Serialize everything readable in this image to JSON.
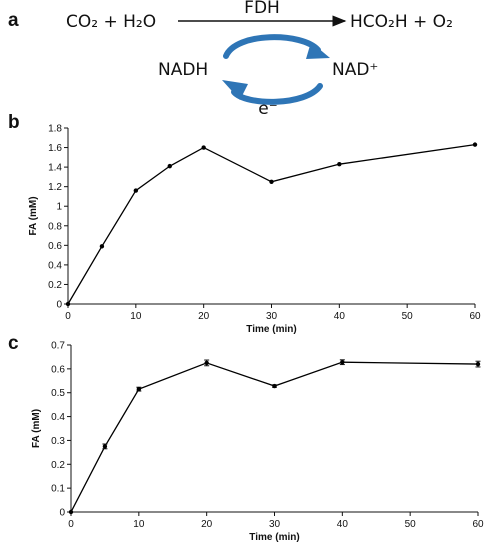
{
  "panels": {
    "a": "a",
    "b": "b",
    "c": "c"
  },
  "scheme": {
    "left": "CO₂ + H₂O",
    "enzyme": "FDH",
    "right": "HCO₂H + O₂",
    "cofactor_left": "NADH",
    "cofactor_right": "NAD⁺",
    "electron": "e⁻",
    "arrow_color": "#2E75B6"
  },
  "chart_data": [
    {
      "type": "line",
      "panel": "b",
      "x": [
        0,
        5,
        10,
        15,
        20,
        30,
        40,
        60
      ],
      "values": [
        0,
        0.59,
        1.16,
        1.41,
        1.6,
        1.25,
        1.43,
        1.63
      ],
      "xlabel": "Time (min)",
      "ylabel": "FA (mM)",
      "xlim": [
        0,
        60
      ],
      "ylim": [
        0,
        1.8
      ],
      "xticks": [
        0,
        10,
        20,
        30,
        40,
        50,
        60
      ],
      "yticks": [
        0,
        0.2,
        0.4,
        0.6,
        0.8,
        1,
        1.2,
        1.4,
        1.6,
        1.8
      ],
      "grid": false,
      "color": "#000000"
    },
    {
      "type": "line",
      "panel": "c",
      "x": [
        0,
        5,
        10,
        20,
        30,
        40,
        60
      ],
      "values": [
        0,
        0.275,
        0.515,
        0.625,
        0.528,
        0.628,
        0.62
      ],
      "errors": [
        0,
        0.01,
        0.008,
        0.012,
        0.005,
        0.01,
        0.012
      ],
      "xlabel": "Time (min)",
      "ylabel": "FA (mM)",
      "xlim": [
        0,
        60
      ],
      "ylim": [
        0,
        0.7
      ],
      "xticks": [
        0,
        10,
        20,
        30,
        40,
        50,
        60
      ],
      "yticks": [
        0,
        0.1,
        0.2,
        0.3,
        0.4,
        0.5,
        0.6,
        0.7
      ],
      "grid": false,
      "color": "#000000"
    }
  ]
}
